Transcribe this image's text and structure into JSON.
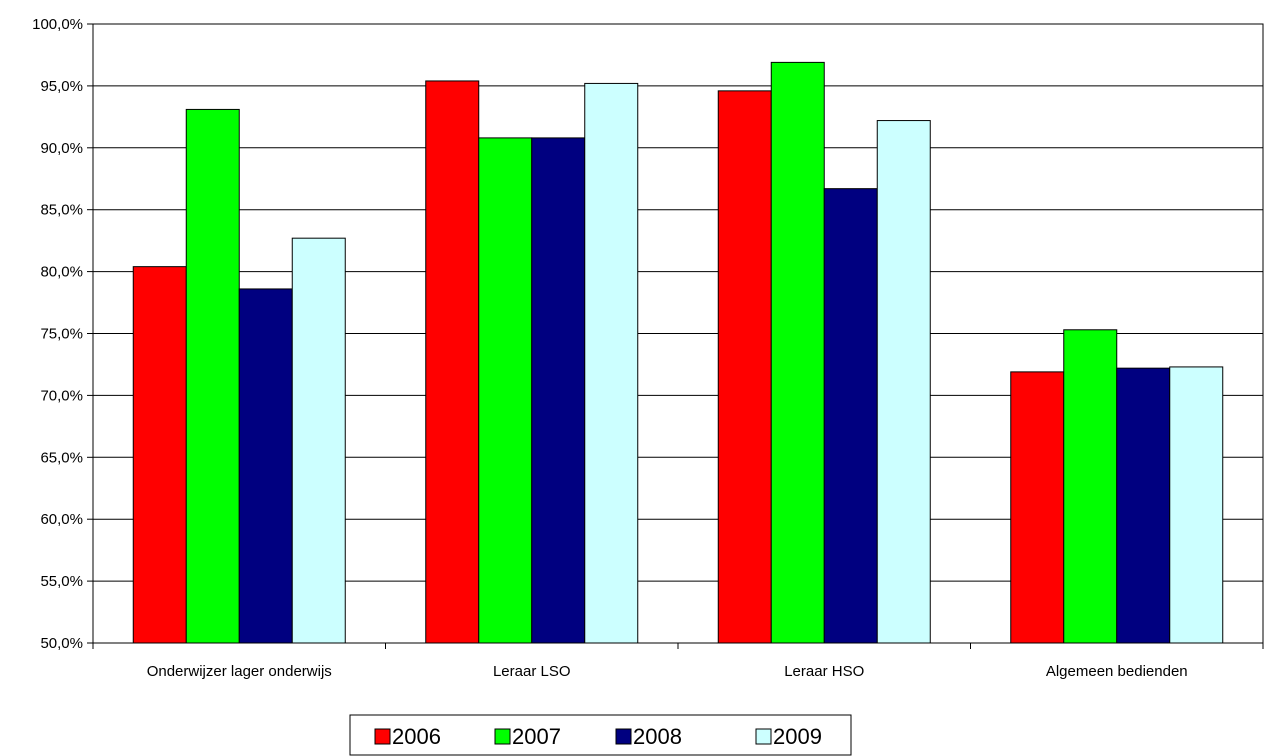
{
  "chart_data": {
    "type": "bar",
    "categories": [
      "Onderwijzer lager onderwijs",
      "Leraar LSO",
      "Leraar HSO",
      "Algemeen bedienden"
    ],
    "series": [
      {
        "name": "2006",
        "color": "#FF0000",
        "values": [
          80.4,
          95.4,
          94.6,
          71.9
        ]
      },
      {
        "name": "2007",
        "color": "#00FF00",
        "values": [
          93.1,
          90.8,
          96.9,
          75.3
        ]
      },
      {
        "name": "2008",
        "color": "#000080",
        "values": [
          78.6,
          90.8,
          86.7,
          72.2
        ]
      },
      {
        "name": "2009",
        "color": "#CCFFFF",
        "values": [
          82.7,
          95.2,
          92.2,
          72.3
        ]
      }
    ],
    "ylim": [
      50,
      100
    ],
    "y_ticks": [
      50,
      55,
      60,
      65,
      70,
      75,
      80,
      85,
      90,
      95,
      100
    ],
    "y_tick_labels": [
      "50,0%",
      "55,0%",
      "60,0%",
      "65,0%",
      "70,0%",
      "75,0%",
      "80,0%",
      "85,0%",
      "90,0%",
      "95,0%",
      "100,0%"
    ],
    "grid": true,
    "legend_position": "bottom"
  }
}
